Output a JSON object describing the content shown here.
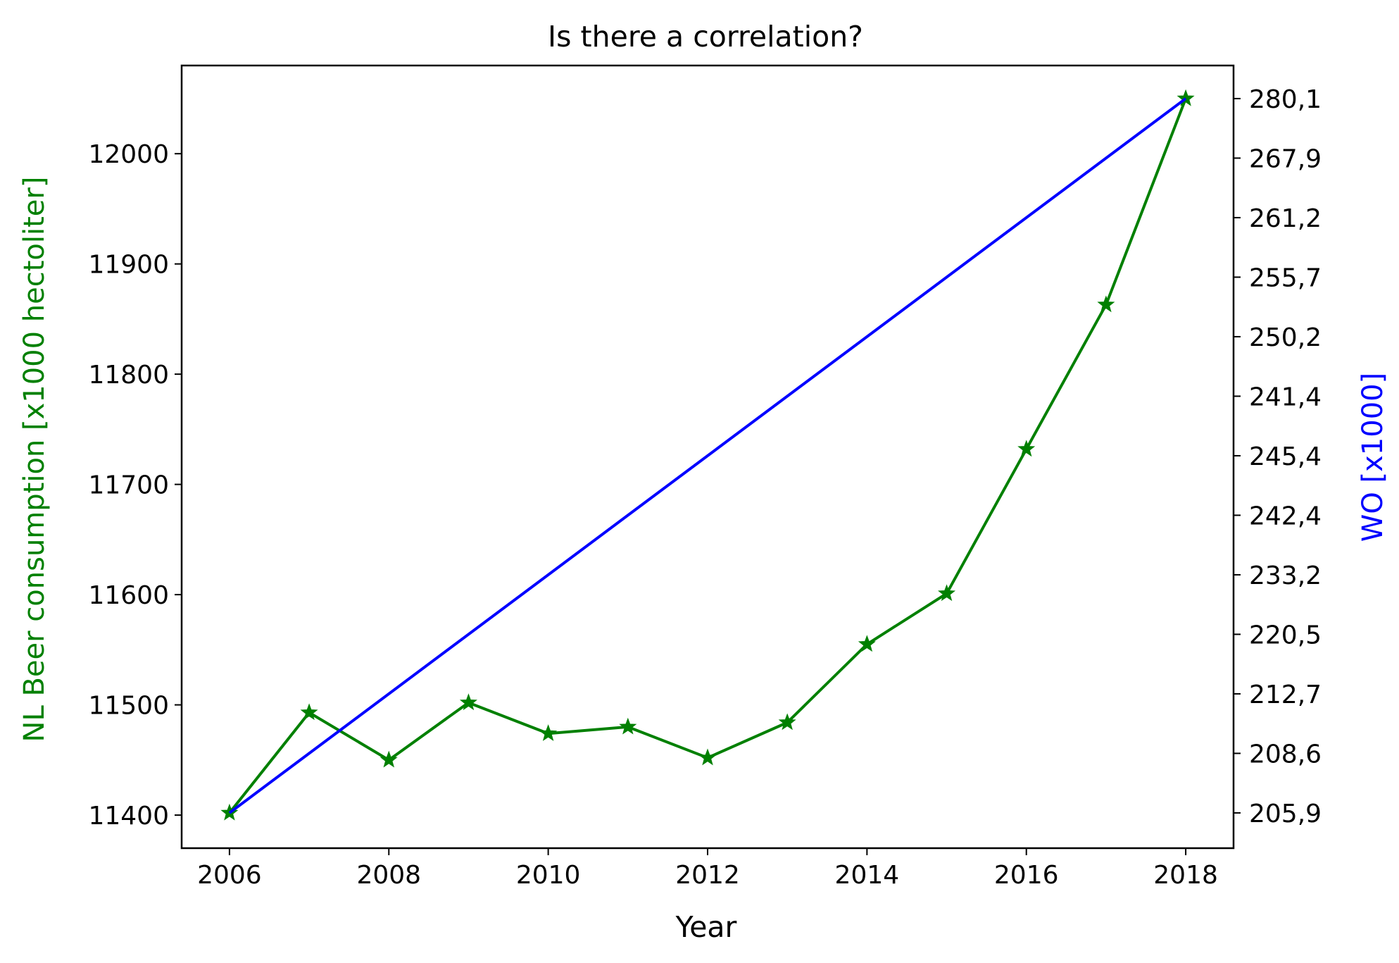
{
  "chart_data": {
    "type": "line",
    "title": "Is there a correlation?",
    "xlabel": "Year",
    "ylabel_left": "NL Beer consumption [x1000 hectoliter]",
    "ylabel_right": "WO [x1000]",
    "xlim": [
      2005.4,
      2018.6
    ],
    "ylim_left": [
      11370,
      12080
    ],
    "ylim_right": [
      0,
      12
    ],
    "x_ticks": [
      2006,
      2008,
      2010,
      2012,
      2014,
      2016,
      2018
    ],
    "x_tick_labels": [
      "2006",
      "2008",
      "2010",
      "2012",
      "2014",
      "2016",
      "2018"
    ],
    "y_ticks_left": [
      11400,
      11500,
      11600,
      11700,
      11800,
      11900,
      12000
    ],
    "y_tick_labels_left": [
      "11400",
      "11500",
      "11600",
      "11700",
      "11800",
      "11900",
      "12000"
    ],
    "y_ticks_right": [
      0,
      1,
      2,
      3,
      4,
      5,
      6,
      7,
      8,
      9,
      10,
      11,
      12
    ],
    "y_tick_labels_right": [
      "205,9",
      "208,6",
      "212,7",
      "220,5",
      "233,2",
      "242,4",
      "245,4",
      "241,4",
      "250,2",
      "255,7",
      "261,2",
      "267,9",
      "280,1"
    ],
    "grid": false,
    "legend": "none",
    "colors": {
      "beer": "#008000",
      "wo": "#0000ff",
      "axes": "#000000"
    },
    "series": [
      {
        "axis": "left",
        "color": "#008000",
        "marker": "star",
        "x": [
          2006,
          2007,
          2008,
          2009,
          2010,
          2011,
          2012,
          2013,
          2014,
          2015,
          2016,
          2017,
          2018
        ],
        "values": [
          11402,
          11493,
          11450,
          11502,
          11474,
          11480,
          11452,
          11484,
          11555,
          11601,
          11732,
          11863,
          12050
        ]
      },
      {
        "axis": "right",
        "color": "#0000ff",
        "marker": "none",
        "x": [
          2006,
          2018
        ],
        "values": [
          0,
          12
        ]
      }
    ]
  }
}
